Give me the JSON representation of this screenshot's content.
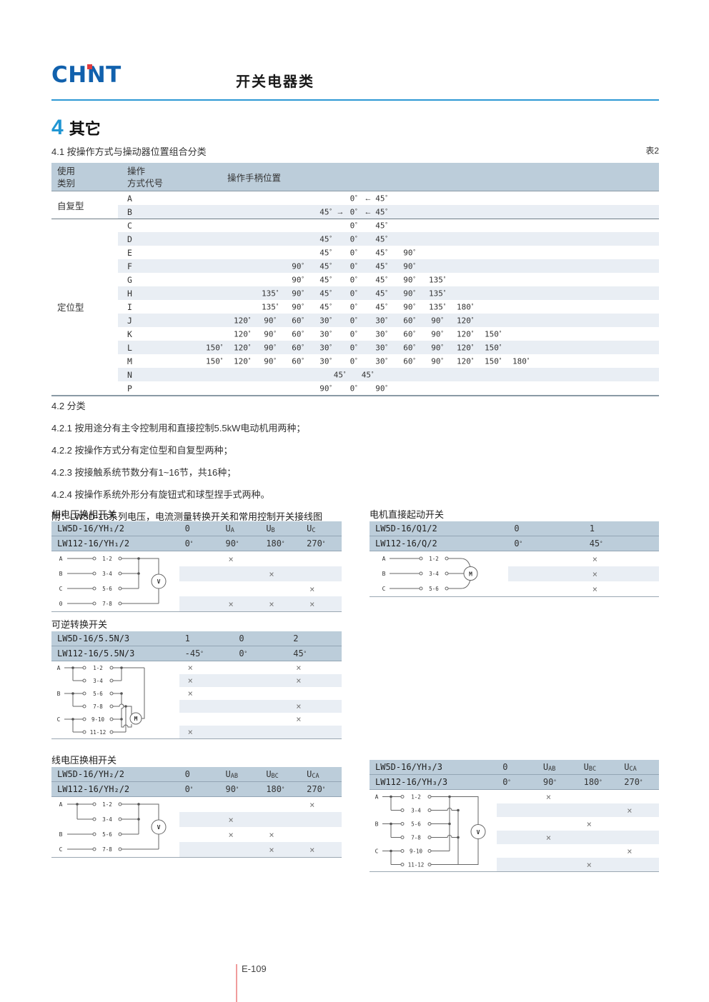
{
  "page": {
    "brand": "CHNT",
    "header_title": "开关电器类",
    "section_num": "4",
    "section_title": "其它",
    "sub_heading": "4.1 按操作方式与操动器位置组合分类",
    "table_ref": "表2",
    "notes": [
      "4.2 分类",
      "4.2.1 按用途分有主令控制用和直接控制5.5kW电动机用两种；",
      "4.2.2 按操作方式分有定位型和自复型两种；",
      "4.2.3 按接触系统节数分有1~16节，共16种；",
      "4.2.4 按操作系统外形分有旋钮式和球型捏手式两种。"
    ],
    "appendix": "附：LW5D-16系列电压，电流测量转换开关和常用控制开关接线图",
    "footer": "E-109"
  },
  "colors": {
    "accent_blue": "#2d98d4",
    "logo_blue": "#1161ad",
    "logo_red": "#e13b3f",
    "header_band": "#bccdda",
    "row_alt": "#e9eef4",
    "footer_line": "#f09c9c"
  },
  "mark_char": "×",
  "main_table": {
    "headers": {
      "col1": [
        "使用",
        "类别"
      ],
      "col2": [
        "操作",
        "方式代号"
      ],
      "col3": "操作手柄位置"
    },
    "groups": [
      {
        "category": "自复型",
        "rows": [
          {
            "code": "A",
            "cells": [
              {
                "c": 5,
                "v": "0°"
              },
              {
                "c": 6,
                "v": "45°",
                "pre": "←"
              }
            ]
          },
          {
            "code": "B",
            "cells": [
              {
                "c": 4,
                "v": "45°"
              },
              {
                "c": 5,
                "v": "0°",
                "pre": "→"
              },
              {
                "c": 6,
                "v": "45°",
                "pre": "←"
              }
            ]
          }
        ]
      },
      {
        "category": "定位型",
        "rows": [
          {
            "code": "C",
            "cells": [
              {
                "c": 5,
                "v": "0°"
              },
              {
                "c": 6,
                "v": "45°"
              }
            ]
          },
          {
            "code": "D",
            "cells": [
              {
                "c": 4,
                "v": "45°"
              },
              {
                "c": 5,
                "v": "0°"
              },
              {
                "c": 6,
                "v": "45°"
              }
            ]
          },
          {
            "code": "E",
            "cells": [
              {
                "c": 4,
                "v": "45°"
              },
              {
                "c": 5,
                "v": "0°"
              },
              {
                "c": 6,
                "v": "45°"
              },
              {
                "c": 7,
                "v": "90°"
              }
            ]
          },
          {
            "code": "F",
            "cells": [
              {
                "c": 3,
                "v": "90°"
              },
              {
                "c": 4,
                "v": "45°"
              },
              {
                "c": 5,
                "v": "0°"
              },
              {
                "c": 6,
                "v": "45°"
              },
              {
                "c": 7,
                "v": "90°"
              }
            ]
          },
          {
            "code": "G",
            "cells": [
              {
                "c": 3,
                "v": "90°"
              },
              {
                "c": 4,
                "v": "45°"
              },
              {
                "c": 5,
                "v": "0°"
              },
              {
                "c": 6,
                "v": "45°"
              },
              {
                "c": 7,
                "v": "90°"
              },
              {
                "c": 8,
                "v": "135°"
              }
            ]
          },
          {
            "code": "H",
            "cells": [
              {
                "c": 2,
                "v": "135°"
              },
              {
                "c": 3,
                "v": "90°"
              },
              {
                "c": 4,
                "v": "45°"
              },
              {
                "c": 5,
                "v": "0°"
              },
              {
                "c": 6,
                "v": "45°"
              },
              {
                "c": 7,
                "v": "90°"
              },
              {
                "c": 8,
                "v": "135°"
              }
            ]
          },
          {
            "code": "I",
            "cells": [
              {
                "c": 2,
                "v": "135°"
              },
              {
                "c": 3,
                "v": "90°"
              },
              {
                "c": 4,
                "v": "45°"
              },
              {
                "c": 5,
                "v": "0°"
              },
              {
                "c": 6,
                "v": "45°"
              },
              {
                "c": 7,
                "v": "90°"
              },
              {
                "c": 8,
                "v": "135°"
              },
              {
                "c": 9,
                "v": "180°"
              }
            ]
          },
          {
            "code": "J",
            "cells": [
              {
                "c": 1,
                "v": "120°"
              },
              {
                "c": 2,
                "v": "90°"
              },
              {
                "c": 3,
                "v": "60°"
              },
              {
                "c": 4,
                "v": "30°"
              },
              {
                "c": 5,
                "v": "0°"
              },
              {
                "c": 6,
                "v": "30°"
              },
              {
                "c": 7,
                "v": "60°"
              },
              {
                "c": 8,
                "v": "90°"
              },
              {
                "c": 9,
                "v": "120°"
              }
            ]
          },
          {
            "code": "K",
            "cells": [
              {
                "c": 1,
                "v": "120°"
              },
              {
                "c": 2,
                "v": "90°"
              },
              {
                "c": 3,
                "v": "60°"
              },
              {
                "c": 4,
                "v": "30°"
              },
              {
                "c": 5,
                "v": "0°"
              },
              {
                "c": 6,
                "v": "30°"
              },
              {
                "c": 7,
                "v": "60°"
              },
              {
                "c": 8,
                "v": "90°"
              },
              {
                "c": 9,
                "v": "120°"
              },
              {
                "c": 10,
                "v": "150°"
              }
            ]
          },
          {
            "code": "L",
            "cells": [
              {
                "c": 0,
                "v": "150°"
              },
              {
                "c": 1,
                "v": "120°"
              },
              {
                "c": 2,
                "v": "90°"
              },
              {
                "c": 3,
                "v": "60°"
              },
              {
                "c": 4,
                "v": "30°"
              },
              {
                "c": 5,
                "v": "0°"
              },
              {
                "c": 6,
                "v": "30°"
              },
              {
                "c": 7,
                "v": "60°"
              },
              {
                "c": 8,
                "v": "90°"
              },
              {
                "c": 9,
                "v": "120°"
              },
              {
                "c": 10,
                "v": "150°"
              }
            ]
          },
          {
            "code": "M",
            "cells": [
              {
                "c": 0,
                "v": "150°"
              },
              {
                "c": 1,
                "v": "120°"
              },
              {
                "c": 2,
                "v": "90°"
              },
              {
                "c": 3,
                "v": "60°"
              },
              {
                "c": 4,
                "v": "30°"
              },
              {
                "c": 5,
                "v": "0°"
              },
              {
                "c": 6,
                "v": "30°"
              },
              {
                "c": 7,
                "v": "60°"
              },
              {
                "c": 8,
                "v": "90°"
              },
              {
                "c": 9,
                "v": "120°"
              },
              {
                "c": 10,
                "v": "150°"
              },
              {
                "c": 11,
                "v": "180°"
              }
            ]
          },
          {
            "code": "N",
            "cells": [
              {
                "c": 4.5,
                "v": "45°"
              },
              {
                "c": 5.5,
                "v": "45°"
              }
            ]
          },
          {
            "code": "P",
            "cells": [
              {
                "c": 4,
                "v": "90°"
              },
              {
                "c": 5,
                "v": "0°"
              },
              {
                "c": 6,
                "v": "90°"
              }
            ]
          }
        ]
      }
    ]
  },
  "subtables": [
    {
      "title": "相电压换相开关",
      "header": [
        {
          "model": "LW5D-16/YH₁/2",
          "cols": [
            {
              "b": "0"
            },
            {
              "b": "U",
              "s": "A"
            },
            {
              "b": "U",
              "s": "B"
            },
            {
              "b": "U",
              "s": "C"
            }
          ]
        },
        {
          "model": "LW112-16/YH₁/2",
          "cols": [
            {
              "b": "0°"
            },
            {
              "b": "90°"
            },
            {
              "b": "180°"
            },
            {
              "b": "270°"
            }
          ]
        }
      ],
      "marks": [
        [
          0,
          1,
          0,
          0
        ],
        [
          0,
          0,
          1,
          0
        ],
        [
          0,
          0,
          0,
          1
        ],
        [
          0,
          1,
          1,
          1
        ]
      ],
      "diagram": {
        "phases": [
          "A",
          "B",
          "C",
          "0"
        ],
        "terminals": [
          "1-2",
          "3-4",
          "5-6",
          "7-8"
        ],
        "device": "V"
      }
    },
    {
      "title": "电机直接起动开关",
      "header": [
        {
          "model": "LW5D-16/Q1/2",
          "cols": [
            {
              "b": "0"
            },
            {
              "b": "1"
            }
          ]
        },
        {
          "model": "LW112-16/Q/2",
          "cols": [
            {
              "b": "0°"
            },
            {
              "b": "45°"
            }
          ]
        }
      ],
      "marks": [
        [
          0,
          1
        ],
        [
          0,
          1
        ],
        [
          0,
          1
        ]
      ],
      "diagram": {
        "phases": [
          "A",
          "B",
          "C"
        ],
        "terminals": [
          "1-2",
          "3-4",
          "5-6"
        ],
        "device": "M"
      }
    },
    {
      "title": "可逆转换开关",
      "header": [
        {
          "model": "LW5D-16/5.5N/3",
          "cols": [
            {
              "b": "1"
            },
            {
              "b": "0"
            },
            {
              "b": "2"
            }
          ]
        },
        {
          "model": "LW112-16/5.5N/3",
          "cols": [
            {
              "b": "-45°"
            },
            {
              "b": "0°"
            },
            {
              "b": "45°"
            }
          ]
        }
      ],
      "marks": [
        [
          1,
          0,
          1
        ],
        [
          1,
          0,
          1
        ],
        [
          1,
          0,
          0
        ],
        [
          0,
          0,
          1
        ],
        [
          0,
          0,
          1
        ],
        [
          1,
          0,
          0
        ]
      ],
      "diagram": {
        "phases": [
          "A",
          "B",
          "C"
        ],
        "terminals": [
          "1-2",
          "3-4",
          "5-6",
          "7-8",
          "9-10",
          "11-12"
        ],
        "device": "M"
      }
    },
    {
      "title": "线电压换相开关",
      "header": [
        {
          "model": "LW5D-16/YH₂/2",
          "cols": [
            {
              "b": "0"
            },
            {
              "b": "U",
              "s": "AB"
            },
            {
              "b": "U",
              "s": "BC"
            },
            {
              "b": "U",
              "s": "CA"
            }
          ]
        },
        {
          "model": "LW112-16/YH₂/2",
          "cols": [
            {
              "b": "0°"
            },
            {
              "b": "90°"
            },
            {
              "b": "180°"
            },
            {
              "b": "270°"
            }
          ]
        }
      ],
      "marks": [
        [
          0,
          0,
          0,
          1
        ],
        [
          0,
          1,
          0,
          0
        ],
        [
          0,
          1,
          1,
          0
        ],
        [
          0,
          0,
          1,
          1
        ]
      ],
      "diagram": {
        "phases": [
          "A",
          "B",
          "C"
        ],
        "terminals": [
          "1-2",
          "3-4",
          "5-6",
          "7-8"
        ],
        "device": "V"
      }
    },
    {
      "title": "",
      "header": [
        {
          "model": "LW5D-16/YH₃/3",
          "cols": [
            {
              "b": "0"
            },
            {
              "b": "U",
              "s": "AB"
            },
            {
              "b": "U",
              "s": "BC"
            },
            {
              "b": "U",
              "s": "CA"
            }
          ]
        },
        {
          "model": "LW112-16/YH₃/3",
          "cols": [
            {
              "b": "0°"
            },
            {
              "b": "90°"
            },
            {
              "b": "180°"
            },
            {
              "b": "270°"
            }
          ]
        }
      ],
      "marks": [
        [
          0,
          1,
          0,
          0
        ],
        [
          0,
          0,
          0,
          1
        ],
        [
          0,
          0,
          1,
          0
        ],
        [
          0,
          1,
          0,
          0
        ],
        [
          0,
          0,
          0,
          1
        ],
        [
          0,
          0,
          1,
          0
        ]
      ],
      "diagram": {
        "phases": [
          "A",
          "B",
          "C"
        ],
        "terminals": [
          "1-2",
          "3-4",
          "5-6",
          "7-8",
          "9-10",
          "11-12"
        ],
        "device": "V"
      }
    }
  ]
}
